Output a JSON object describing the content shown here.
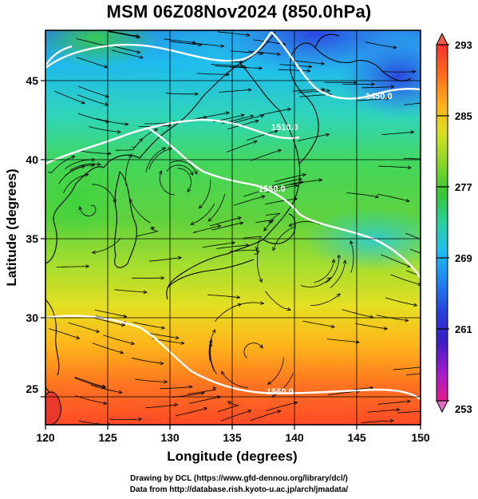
{
  "title": "MSM 06Z08Nov2024 (850.0hPa)",
  "x_axis": {
    "label": "Longitude (degrees)",
    "ticks": [
      "120",
      "125",
      "130",
      "135",
      "140",
      "145",
      "150"
    ]
  },
  "y_axis": {
    "label": "Latitude  (degrees)",
    "ticks": [
      "25",
      "30",
      "35",
      "40",
      "45"
    ]
  },
  "colorbar": {
    "ticks": [
      "293",
      "285",
      "277",
      "269",
      "261",
      "253"
    ]
  },
  "contour_labels": [
    "1450.0",
    "1510.0",
    "1560.0",
    "1560.0"
  ],
  "credits": {
    "line1": "Drawing by DCL (https://www.gfd-dennou.org/library/dcl/)",
    "line2": "Data from http://database.rish.kyoto-u.ac.jp/arch/jmadata/"
  },
  "chart_data": {
    "type": "heatmap",
    "title": "MSM 06Z08Nov2024 (850.0hPa)",
    "xlabel": "Longitude (degrees)",
    "ylabel": "Latitude  (degrees)",
    "xlim": [
      120,
      150
    ],
    "ylim": [
      22.5,
      47.5
    ],
    "x_ticks": [
      120,
      125,
      130,
      135,
      140,
      145,
      150
    ],
    "y_ticks": [
      25,
      30,
      35,
      40,
      45
    ],
    "colorbar_range": [
      253,
      293
    ],
    "colorbar_ticks": [
      293,
      285,
      277,
      269,
      261,
      253
    ],
    "grid": true,
    "overlays": [
      "temperature shading",
      "streamlines",
      "geopotential height contours",
      "coastlines"
    ],
    "contours": [
      {
        "label": "1450.0",
        "lon": 146.5,
        "lat": 43.7
      },
      {
        "label": "1510.0",
        "lon": 135.3,
        "lat": 41.6
      },
      {
        "label": "1560.0",
        "lon": 137.3,
        "lat": 38.4
      },
      {
        "label": "1560.0",
        "lon": 135.2,
        "lat": 25.3
      }
    ],
    "colors": {
      "warm": "#ff4a28",
      "mid": "#39d139",
      "cool": "#2b9ef5",
      "cold": "#2a3ee0"
    }
  }
}
